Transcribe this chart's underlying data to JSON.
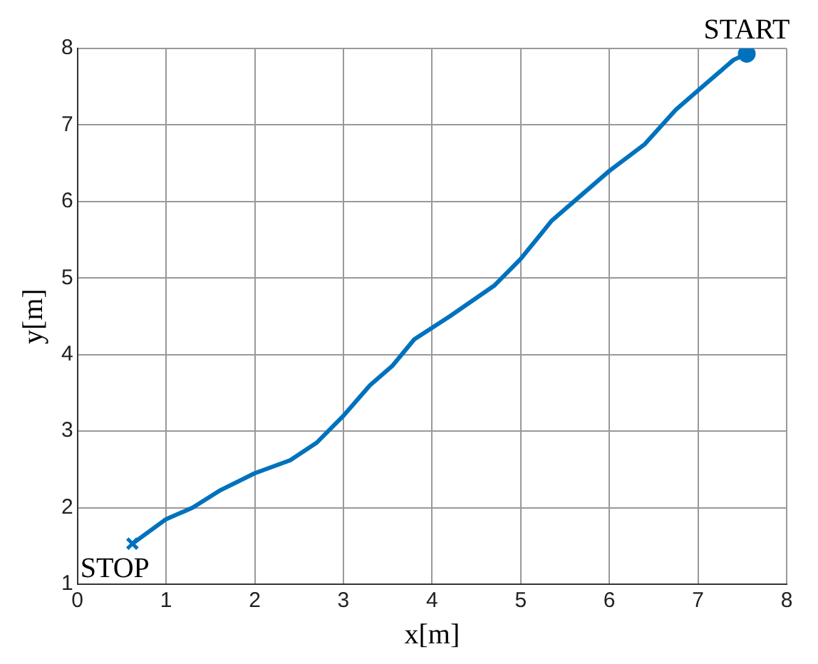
{
  "chart_data": {
    "type": "line",
    "xlabel": "x[m]",
    "ylabel": "y[m]",
    "xlim": [
      0,
      8
    ],
    "ylim": [
      1,
      8
    ],
    "xticks": [
      0,
      1,
      2,
      3,
      4,
      5,
      6,
      7,
      8
    ],
    "yticks": [
      1,
      2,
      3,
      4,
      5,
      6,
      7,
      8
    ],
    "grid": true,
    "series": [
      {
        "color": "#0072bd",
        "marker": "none",
        "x": [
          0.62,
          1.0,
          1.3,
          1.6,
          2.0,
          2.4,
          2.7,
          3.0,
          3.3,
          3.55,
          3.8,
          4.2,
          4.7,
          5.0,
          5.35,
          5.7,
          6.0,
          6.4,
          6.75,
          7.1,
          7.4,
          7.55
        ],
        "values": [
          1.53,
          1.85,
          2.0,
          2.22,
          2.45,
          2.62,
          2.85,
          3.2,
          3.6,
          3.85,
          4.2,
          4.5,
          4.9,
          5.25,
          5.75,
          6.1,
          6.4,
          6.75,
          7.2,
          7.55,
          7.85,
          7.93
        ]
      },
      {
        "type": "scatter",
        "color": "#0072bd",
        "marker": "circle",
        "x": [
          7.55
        ],
        "values": [
          7.93
        ]
      },
      {
        "type": "scatter",
        "color": "#0072bd",
        "marker": "cross",
        "x": [
          0.62
        ],
        "values": [
          1.53
        ]
      }
    ],
    "annotations": [
      {
        "text": "START",
        "x": 7.55,
        "y": 7.93
      },
      {
        "text": "STOP",
        "x": 0.62,
        "y": 1.53
      }
    ]
  }
}
